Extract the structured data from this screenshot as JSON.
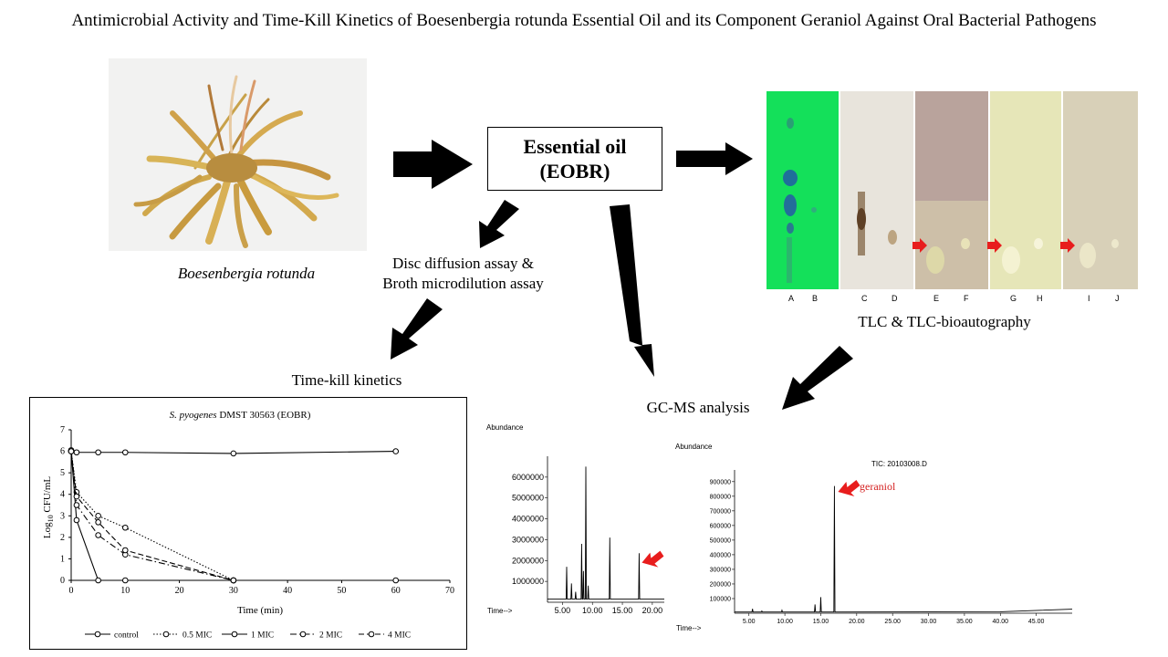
{
  "title": "Antimicrobial Activity and Time-Kill Kinetics of Boesenbergia rotunda Essential Oil and its Component Geraniol Against Oral Bacterial Pathogens",
  "plant_caption": "Boesenbergia rotunda",
  "essential_oil": {
    "line1": "Essential oil",
    "line2": "(EOBR)"
  },
  "assay_label": {
    "line1": "Disc diffusion assay &",
    "line2": "Broth microdilution assay"
  },
  "timekill_label": "Time-kill  kinetics",
  "tlc_caption": "TLC & TLC-bioautography",
  "tlc_lanes": [
    "A",
    "B",
    "C",
    "D",
    "E",
    "F",
    "G",
    "H",
    "I",
    "J"
  ],
  "gcms_label": "GC-MS analysis",
  "colors": {
    "arrow": "#000000",
    "highlight_arrow": "#e81d1d",
    "tlc_green": "#14e05a",
    "geraniol_text": "#d42020"
  },
  "gc1": {
    "ylabel": "Abundance",
    "xlabel": "Time-->",
    "y_ticks": [
      "6000000",
      "5000000",
      "4000000",
      "3000000",
      "2000000",
      "1000000"
    ],
    "x_ticks": [
      "5.00",
      "10.00",
      "15.00",
      "20.00"
    ]
  },
  "gc2": {
    "ylabel": "Abundance",
    "xlabel": "Time-->",
    "tic": "TIC: 20103008.D",
    "peak_label": "geraniol",
    "y_ticks": [
      "900000",
      "800000",
      "700000",
      "600000",
      "500000",
      "400000",
      "300000",
      "200000",
      "100000"
    ],
    "x_ticks": [
      "5.00",
      "10.00",
      "15.00",
      "20.00",
      "25.00",
      "30.00",
      "35.00",
      "40.00",
      "45.00"
    ]
  },
  "chart_data": {
    "type": "line",
    "title_italic": "S. pyogenes",
    "title_rest": " DMST 30563 (EOBR)",
    "ylabel_pre": "Log",
    "ylabel_sub": "10",
    "ylabel_post": " CFU/mL",
    "xlabel": "Time (min)",
    "xlim": [
      0,
      70
    ],
    "ylim": [
      0,
      7
    ],
    "x_ticks": [
      "0",
      "10",
      "20",
      "30",
      "40",
      "50",
      "60",
      "70"
    ],
    "y_ticks": [
      "0",
      "1",
      "2",
      "3",
      "4",
      "5",
      "6",
      "7"
    ],
    "legend_position": "bottom",
    "series": [
      {
        "name": "control",
        "style": "solid",
        "x": [
          0,
          1,
          5,
          10,
          30,
          60
        ],
        "y": [
          6.05,
          5.95,
          5.95,
          5.95,
          5.9,
          6.0
        ]
      },
      {
        "name": "0.5 MIC",
        "style": "dotted",
        "x": [
          0,
          1,
          5,
          10,
          30
        ],
        "y": [
          6.0,
          4.1,
          3.0,
          2.45,
          0
        ]
      },
      {
        "name": "1 MIC",
        "style": "solid",
        "x": [
          0,
          1,
          5,
          10,
          30,
          60
        ],
        "y": [
          6.0,
          2.8,
          0,
          0,
          0,
          0
        ]
      },
      {
        "name": "2 MIC",
        "style": "dashdot",
        "x": [
          0,
          1,
          5,
          10,
          30
        ],
        "y": [
          6.0,
          3.5,
          2.1,
          1.2,
          0
        ]
      },
      {
        "name": "4 MIC",
        "style": "dashed",
        "x": [
          0,
          1,
          5,
          10,
          30
        ],
        "y": [
          6.0,
          3.9,
          2.7,
          1.4,
          0
        ]
      }
    ]
  }
}
